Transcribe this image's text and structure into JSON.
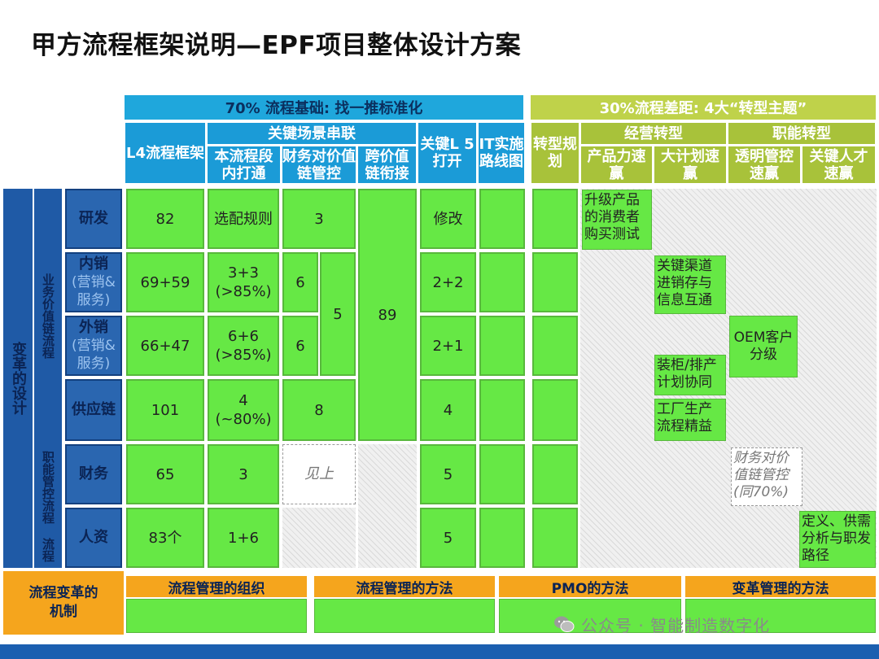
{
  "title": "甲方流程框架说明—EPF项目整体设计方案",
  "header": {
    "left_bar": "70% 流程基础: 找一推标准化",
    "right_bar": "30%流程差距:    4大“转型主题”",
    "l4": "L4流程框架",
    "key_scene": "关键场景串联",
    "sub_inner": "本流程段内打通",
    "sub_fin": "财务对价值链管控",
    "sub_cross": "跨价值链衔接",
    "key_l5": "关键L 5打开",
    "it": "IT实施路线图",
    "transform_plan": "转型规划",
    "biz_transform": "经营转型",
    "func_transform": "职能转型",
    "product": "产品力速赢",
    "big_plan": "大计划速赢",
    "transparent": "透明管控速赢",
    "talent": "关键人才速赢"
  },
  "side": {
    "design": "变革的设计",
    "biz_chain": "业务价值链流程",
    "func_flow": "职能管控流程",
    "flow": "流程"
  },
  "rows": [
    {
      "name": "研发",
      "sub": "",
      "l4": "82",
      "inner": "选配规则",
      "fin": "3",
      "l5": "修改"
    },
    {
      "name": "内销",
      "sub": "(营销&服务)",
      "l4": "69+59",
      "inner": "3+3 (>85%)",
      "fin": "6",
      "l5": "2+2"
    },
    {
      "name": "外销",
      "sub": "(营销&服务)",
      "l4": "66+47",
      "inner": "6+6 (>85%)",
      "fin": "6",
      "l5": "2+1"
    },
    {
      "name": "供应链",
      "sub": "",
      "l4": "101",
      "inner": "4 (~80%)",
      "fin": "8",
      "l5": "4"
    },
    {
      "name": "财务",
      "sub": "",
      "l4": "65",
      "inner": "3",
      "fin": "见上",
      "l5": "5"
    },
    {
      "name": "人资",
      "sub": "",
      "l4": "83个",
      "inner": "1+6",
      "fin": "",
      "l5": "5"
    }
  ],
  "merged": {
    "fin_mid": "5",
    "cross": "89"
  },
  "themes": {
    "product_note": "升级产品的消费者购买测试",
    "channel_note": "关键渠道进销存与信息互通",
    "oem_note": "OEM客户分级",
    "container_note": "装柜/排产计划协同",
    "factory_note": "工厂生产流程精益",
    "fin_note": "财务对价值链管控(同70%)",
    "talent_note": "定义、供需分析与职发路径"
  },
  "footer": {
    "mechanism": "流程变革的机制",
    "org": "流程管理的组织",
    "method": "流程管理的方法",
    "pmo": "PMO的方法",
    "change": "变革管理的方法"
  },
  "watermark": "公众号 · 智能制造数字化",
  "colors": {
    "blue": "#1b9bd7",
    "olive": "#a8c23a",
    "green": "#66e845",
    "navy": "#1f5aa6",
    "orange": "#f5a51d"
  }
}
